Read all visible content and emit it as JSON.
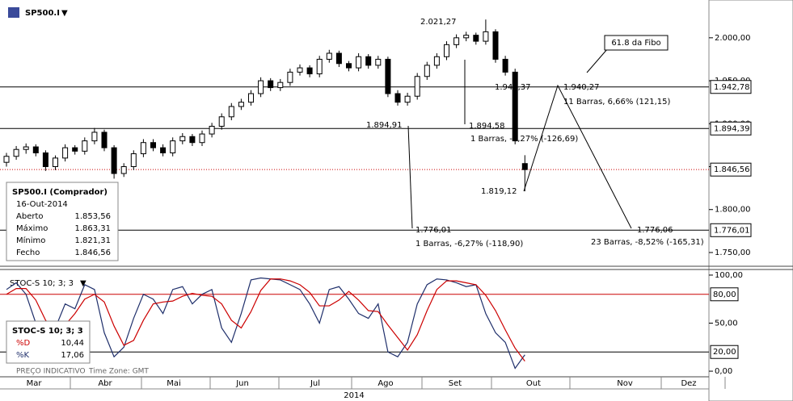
{
  "chart_data": [
    {
      "type": "candlestick",
      "title": "SP500.I",
      "ylim": [
        1734,
        2044
      ],
      "yticks": [
        {
          "value": 1750,
          "label": "1.750,00"
        },
        {
          "value": 1800,
          "label": "1.800,00"
        },
        {
          "value": 1850,
          "label": "1.850,00"
        },
        {
          "value": 1900,
          "label": "1.900,00"
        },
        {
          "value": 1950,
          "label": "1.950,00"
        },
        {
          "value": 2000,
          "label": "2.000,00"
        }
      ],
      "categories": [
        "Mar",
        "Abr",
        "Mai",
        "Jun",
        "Jul",
        "Ago",
        "Set",
        "Out",
        "Nov",
        "Dez"
      ],
      "year": "2014",
      "up_color": "#ffffff",
      "down_color": "#000000",
      "candles": [
        [
          1855,
          1866,
          1850,
          1862
        ],
        [
          1862,
          1874,
          1858,
          1870
        ],
        [
          1870,
          1877,
          1865,
          1873
        ],
        [
          1873,
          1876,
          1862,
          1866
        ],
        [
          1866,
          1869,
          1845,
          1850
        ],
        [
          1850,
          1863,
          1846,
          1860
        ],
        [
          1860,
          1876,
          1856,
          1872
        ],
        [
          1872,
          1875,
          1864,
          1868
        ],
        [
          1868,
          1884,
          1864,
          1880
        ],
        [
          1880,
          1895,
          1876,
          1890
        ],
        [
          1890,
          1893,
          1868,
          1872
        ],
        [
          1872,
          1875,
          1836,
          1842
        ],
        [
          1842,
          1854,
          1838,
          1850
        ],
        [
          1850,
          1869,
          1846,
          1865
        ],
        [
          1865,
          1882,
          1861,
          1878
        ],
        [
          1878,
          1882,
          1868,
          1872
        ],
        [
          1872,
          1876,
          1862,
          1866
        ],
        [
          1866,
          1884,
          1862,
          1880
        ],
        [
          1880,
          1889,
          1876,
          1885
        ],
        [
          1885,
          1888,
          1874,
          1878
        ],
        [
          1878,
          1892,
          1874,
          1888
        ],
        [
          1888,
          1901,
          1884,
          1897
        ],
        [
          1897,
          1912,
          1893,
          1908
        ],
        [
          1908,
          1924,
          1904,
          1920
        ],
        [
          1920,
          1929,
          1916,
          1925
        ],
        [
          1925,
          1939,
          1921,
          1935
        ],
        [
          1935,
          1954,
          1931,
          1950
        ],
        [
          1950,
          1953,
          1938,
          1942
        ],
        [
          1942,
          1952,
          1938,
          1948
        ],
        [
          1948,
          1964,
          1944,
          1960
        ],
        [
          1960,
          1969,
          1956,
          1965
        ],
        [
          1965,
          1968,
          1954,
          1958
        ],
        [
          1958,
          1979,
          1954,
          1975
        ],
        [
          1975,
          1986,
          1971,
          1982
        ],
        [
          1982,
          1985,
          1966,
          1970
        ],
        [
          1970,
          1973,
          1961,
          1965
        ],
        [
          1965,
          1982,
          1961,
          1978
        ],
        [
          1978,
          1981,
          1964,
          1968
        ],
        [
          1968,
          1979,
          1964,
          1975
        ],
        [
          1975,
          1978,
          1931,
          1935
        ],
        [
          1935,
          1939,
          1921,
          1925
        ],
        [
          1925,
          1936,
          1921,
          1932
        ],
        [
          1932,
          1959,
          1928,
          1955
        ],
        [
          1955,
          1972,
          1951,
          1968
        ],
        [
          1968,
          1982,
          1964,
          1978
        ],
        [
          1978,
          1996,
          1974,
          1992
        ],
        [
          1992,
          2004,
          1988,
          2000
        ],
        [
          2000,
          2007,
          1996,
          2003
        ],
        [
          2003,
          2006,
          1992,
          1996
        ],
        [
          1996,
          2021.27,
          1992,
          2007
        ],
        [
          2007,
          2010,
          1971,
          1975
        ],
        [
          1975,
          1979,
          1956,
          1960
        ],
        [
          1960,
          1964,
          1876,
          1880
        ],
        [
          1853.56,
          1863.31,
          1821.31,
          1846.56
        ]
      ],
      "level_lines": [
        {
          "value": 1942.78,
          "label": "1.942,78"
        },
        {
          "value": 1894.39,
          "label": "1.894,39"
        },
        {
          "value": 1776.01,
          "label": "1.776,01"
        }
      ],
      "close_line": {
        "value": 1846.56,
        "label": "1.846,56",
        "color": "#cc0000"
      },
      "annotations": [
        "2.021,27",
        "1.941,37",
        "1.940,27",
        "11 Barras, 6,66% (121,15)",
        "1.894,91",
        "1.894,58",
        "1 Barras, -6,27% (-126,69)",
        "1.819,12",
        "1.776,01",
        "1.776,06",
        "1 Barras, -6,27% (-118,90)",
        "23 Barras, -8,52% (-165,31)"
      ],
      "callout": "61.8 da Fibo",
      "info": {
        "title": "SP500.I (Comprador)",
        "date": "16-Out-2014",
        "rows": [
          [
            "Aberto",
            "1.853,56"
          ],
          [
            "Máximo",
            "1.863,31"
          ],
          [
            "Mínimo",
            "1.821,31"
          ],
          [
            "Fecho",
            "1.846,56"
          ]
        ]
      },
      "footer": [
        "PREÇO INDICATIVO",
        "Time Zone: GMT"
      ]
    },
    {
      "type": "line",
      "title": "STOC-S 10; 3; 3",
      "ylim": [
        -5,
        105
      ],
      "yticks": [
        {
          "value": 0,
          "label": "0,00"
        },
        {
          "value": 50,
          "label": "50,00"
        },
        {
          "value": 100,
          "label": "100,00"
        }
      ],
      "levels": [
        {
          "value": 80,
          "label": "80,00",
          "color": "#cc0000"
        },
        {
          "value": 20,
          "label": "20,00",
          "color": "#000000"
        }
      ],
      "series": [
        {
          "name": "%K",
          "color": "#1f2f6b",
          "legend_value": "17,06",
          "values": [
            85,
            92,
            80,
            50,
            30,
            45,
            70,
            65,
            90,
            85,
            40,
            15,
            25,
            55,
            80,
            75,
            60,
            85,
            88,
            70,
            80,
            85,
            45,
            30,
            60,
            95,
            97,
            96,
            95,
            90,
            85,
            70,
            50,
            85,
            88,
            75,
            60,
            55,
            70,
            20,
            15,
            30,
            70,
            90,
            96,
            95,
            92,
            88,
            90,
            60,
            40,
            30,
            3,
            17.06
          ]
        },
        {
          "name": "%D",
          "color": "#cc0000",
          "legend_value": "10,44",
          "values": [
            80,
            86,
            86,
            74,
            53,
            42,
            48,
            60,
            75,
            80,
            72,
            47,
            27,
            32,
            53,
            70,
            72,
            73,
            78,
            81,
            79,
            78,
            70,
            53,
            45,
            62,
            84,
            96,
            96,
            94,
            90,
            82,
            68,
            68,
            74,
            83,
            74,
            63,
            62,
            48,
            35,
            22,
            38,
            63,
            85,
            94,
            94,
            92,
            90,
            79,
            63,
            43,
            24,
            10.44
          ]
        }
      ]
    }
  ]
}
